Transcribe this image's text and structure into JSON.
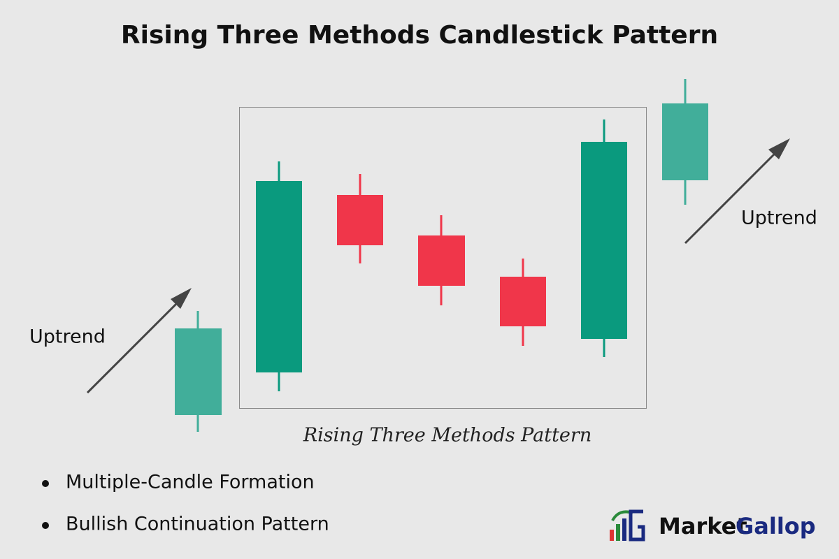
{
  "title": "Rising Three Methods Candlestick Pattern",
  "labels": {
    "uptrend_left": "Uptrend",
    "uptrend_right": "Uptrend",
    "pattern_caption": "Rising Three Methods Pattern"
  },
  "bullets": [
    "Multiple-Candle Formation",
    "Bullish Continuation Pattern"
  ],
  "logo": {
    "word1": "Market",
    "word2": "Gallop"
  }
}
